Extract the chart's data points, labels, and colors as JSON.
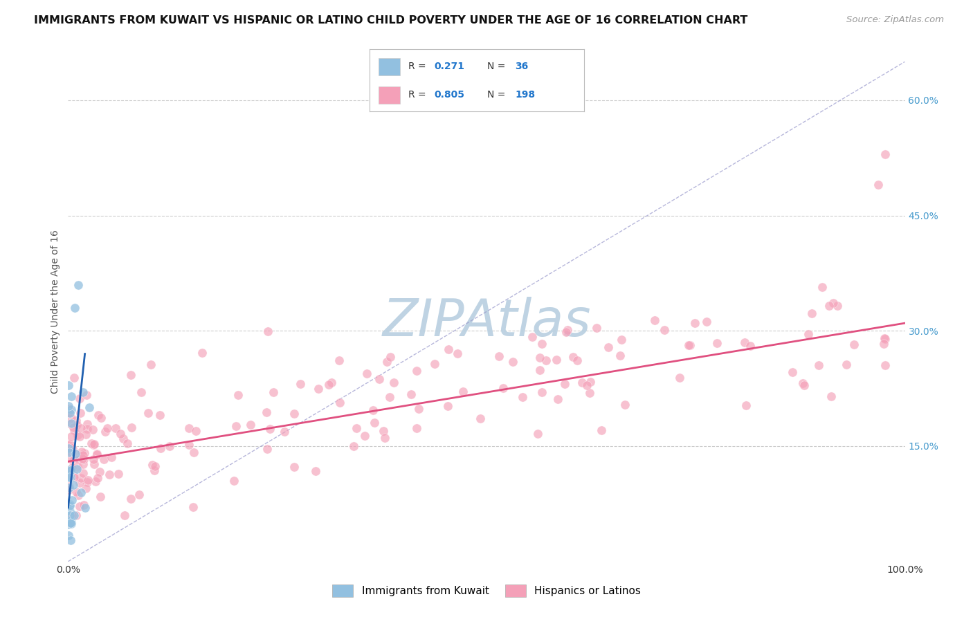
{
  "title": "IMMIGRANTS FROM KUWAIT VS HISPANIC OR LATINO CHILD POVERTY UNDER THE AGE OF 16 CORRELATION CHART",
  "source": "Source: ZipAtlas.com",
  "ylabel": "Child Poverty Under the Age of 16",
  "watermark": "ZIPAtlas",
  "xlim": [
    0,
    100
  ],
  "ylim": [
    0,
    65
  ],
  "xtick_labels": [
    "0.0%",
    "100.0%"
  ],
  "ytick_labels_right": [
    "15.0%",
    "30.0%",
    "45.0%",
    "60.0%"
  ],
  "ytick_vals_right": [
    15,
    30,
    45,
    60
  ],
  "scatter_color_blue": "#92c0e0",
  "scatter_color_pink": "#f4a0b8",
  "trend_line_blue_color": "#2060b0",
  "trend_line_pink_color": "#e05080",
  "diag_line_color": "#9999cc",
  "background_color": "#ffffff",
  "grid_color": "#cccccc",
  "title_fontsize": 11.5,
  "source_fontsize": 9.5,
  "axis_label_fontsize": 10,
  "tick_fontsize": 10,
  "legend_R1": "0.271",
  "legend_N1": "36",
  "legend_R2": "0.805",
  "legend_N2": "198",
  "legend_label1": "Immigrants from Kuwait",
  "legend_label2": "Hispanics or Latinos",
  "watermark_color": "#b8cfe0",
  "watermark_fontsize": 54
}
